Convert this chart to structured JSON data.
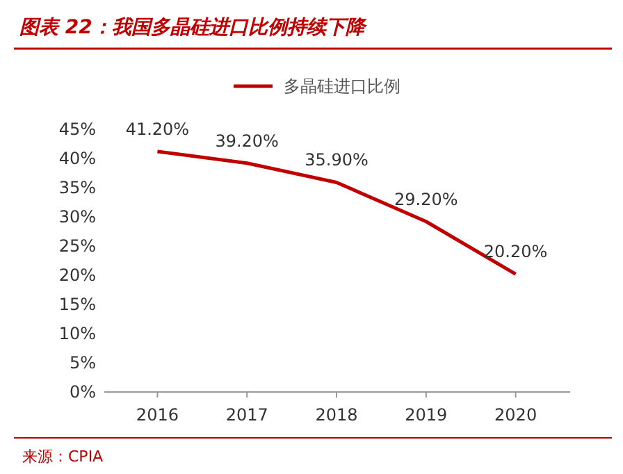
{
  "chart_data": {
    "type": "line",
    "title": "图表 22：我国多晶硅进口比例持续下降",
    "categories": [
      "2016",
      "2017",
      "2018",
      "2019",
      "2020"
    ],
    "series": [
      {
        "name": "多晶硅进口比例",
        "color": "#c00000",
        "values": [
          41.2,
          39.2,
          35.9,
          29.2,
          20.2
        ],
        "value_labels": [
          "41.20%",
          "39.20%",
          "35.90%",
          "29.20%",
          "20.20%"
        ]
      }
    ],
    "ylim": [
      0,
      45
    ],
    "yticks": [
      {
        "value": 0,
        "label": "0%"
      },
      {
        "value": 5,
        "label": "5%"
      },
      {
        "value": 10,
        "label": "10%"
      },
      {
        "value": 15,
        "label": "15%"
      },
      {
        "value": 20,
        "label": "20%"
      },
      {
        "value": 25,
        "label": "25%"
      },
      {
        "value": 30,
        "label": "30%"
      },
      {
        "value": 35,
        "label": "35%"
      },
      {
        "value": 40,
        "label": "40%"
      },
      {
        "value": 45,
        "label": "45%"
      }
    ],
    "legend": "top",
    "marker": "none",
    "line_style": "solid",
    "annotations": [
      "来源：CPIA"
    ]
  }
}
